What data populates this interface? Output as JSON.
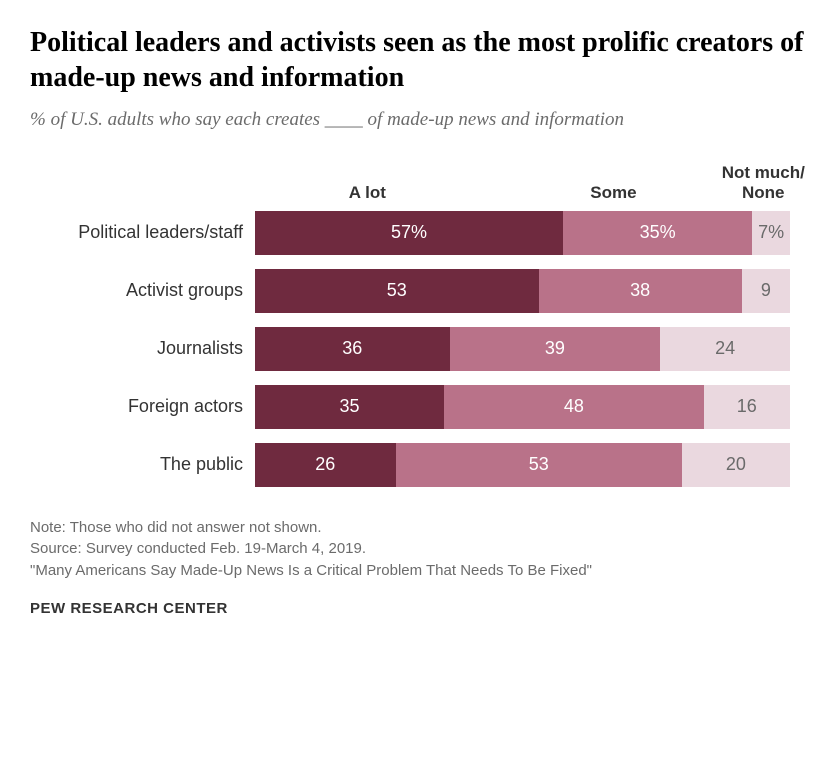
{
  "title": "Political leaders and activists seen as the most prolific creators of made-up news and information",
  "subtitle": "% of U.S. adults who say each creates ____ of made-up news and information",
  "chart": {
    "type": "stacked-bar-horizontal",
    "headers": {
      "alot": "A lot",
      "some": "Some",
      "none": "Not much/\nNone"
    },
    "headerPositions": {
      "alot_left_pct": 21,
      "some_left_pct": 67,
      "none_left_pct": 95
    },
    "colors": {
      "alot": "#6f2a3f",
      "some": "#b97289",
      "none": "#ead8df",
      "noneText": "#6a6a6a",
      "background": "#ffffff"
    },
    "layout": {
      "rowLabelWidth": 225,
      "barHeight": 44,
      "rowGap": 14,
      "fontFamilyLabels": "Arial",
      "fontSizeLabels": 18,
      "fontSizeHeader": 17
    },
    "rows": [
      {
        "label": "Political leaders/staff",
        "alot": 57,
        "some": 35,
        "none": 7,
        "showPercent": true
      },
      {
        "label": "Activist groups",
        "alot": 53,
        "some": 38,
        "none": 9
      },
      {
        "label": "Journalists",
        "alot": 36,
        "some": 39,
        "none": 24
      },
      {
        "label": "Foreign actors",
        "alot": 35,
        "some": 48,
        "none": 16
      },
      {
        "label": "The public",
        "alot": 26,
        "some": 53,
        "none": 20
      }
    ]
  },
  "notes": {
    "line1": "Note: Those who did not answer not shown.",
    "line2": "Source: Survey conducted Feb. 19-March 4, 2019.",
    "line3": "\"Many Americans Say Made-Up News Is a Critical Problem That Needs To Be Fixed\""
  },
  "attribution": "PEW RESEARCH CENTER"
}
